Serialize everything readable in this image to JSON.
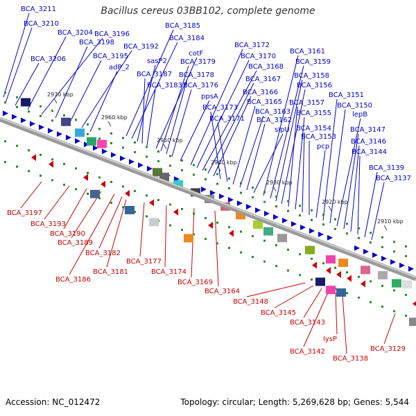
{
  "title": "Bacillus cereus 03BB102, complete genome",
  "footer": {
    "accession": "Accession: NC_012472",
    "summary": "Topology: circular; Length: 5,269,628 bp; Genes: 5,544"
  },
  "ruler_ticks": [
    "2970 kbp",
    "2960 kbp",
    "2950 kbp",
    "2940 kbp",
    "2930 kbp",
    "2920 kbp",
    "2910 kbp"
  ],
  "forward_genes": [
    "BCA_3211",
    "BCA_3210",
    "BCA_3204",
    "BCA_3196",
    "BCA_3206",
    "BCA_3198",
    "BCA_3195",
    "BCA_3192",
    "adP_2",
    "BCA_3185",
    "BCA_3184",
    "sasP2",
    "BCA_3187",
    "BCA_3183",
    "cotF",
    "BCA_3179",
    "BCA_3178",
    "BCA_3176",
    "ppsA",
    "BCA_3172",
    "BCA_3170",
    "BCA_3168",
    "BCA_3167",
    "BCA_3166",
    "BCA_3173",
    "BCA_3171",
    "BCA_3165",
    "BCA_3163",
    "BCA_3162",
    "sipU",
    "BCA_3161",
    "BCA_3159",
    "BCA_3158",
    "BCA_3156",
    "BCA_3157",
    "BCA_3155",
    "BCA_3154",
    "BCA_3153",
    "pcp",
    "BCA_3151",
    "BCA_3150",
    "lepB",
    "BCA_3147",
    "BCA_3146",
    "BCA_3144",
    "BCA_3139",
    "BCA_3137"
  ],
  "reverse_genes": [
    "BCA_3197",
    "BCA_3193",
    "BCA_3190",
    "BCA_3189",
    "BCA_3186",
    "BCA_3182",
    "BCA_3181",
    "BCA_3177",
    "BCA_3174",
    "BCA_3169",
    "BCA_3164",
    "BCA_3148",
    "BCA_3145",
    "BCA_3143",
    "BCA_3142",
    "lysP",
    "BCA_3138",
    "BCA_3129"
  ],
  "colors": {
    "forward": "#0000cc",
    "reverse": "#cc0000",
    "backbone": "#808080",
    "tick": "#228b22"
  }
}
